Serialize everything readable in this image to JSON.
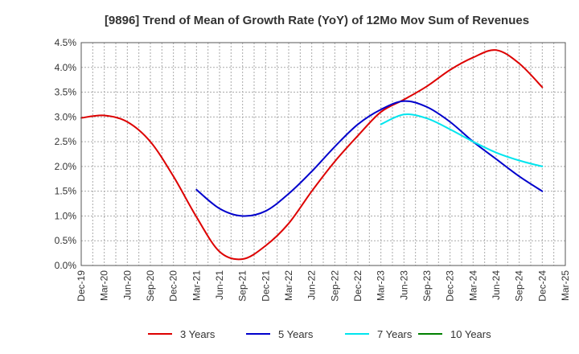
{
  "chart_data": {
    "type": "line",
    "title": "[9896]  Trend of Mean of Growth Rate (YoY) of 12Mo Mov Sum of Revenues",
    "xlabel": "",
    "ylabel": "",
    "ylim": [
      0,
      4.5
    ],
    "y_ticks": [
      "0.0%",
      "0.5%",
      "1.0%",
      "1.5%",
      "2.0%",
      "2.5%",
      "3.0%",
      "3.5%",
      "4.0%",
      "4.5%"
    ],
    "categories": [
      "Dec-19",
      "Mar-20",
      "Jun-20",
      "Sep-20",
      "Dec-20",
      "Mar-21",
      "Jun-21",
      "Sep-21",
      "Dec-21",
      "Mar-22",
      "Jun-22",
      "Sep-22",
      "Dec-22",
      "Mar-23",
      "Jun-23",
      "Sep-23",
      "Dec-23",
      "Mar-24",
      "Jun-24",
      "Sep-24",
      "Dec-24",
      "Mar-25"
    ],
    "grid": true,
    "legend_position": "bottom",
    "series": [
      {
        "name": "3 Years",
        "color": "#dd0000",
        "values": [
          2.98,
          3.03,
          2.9,
          2.5,
          1.8,
          0.98,
          0.28,
          0.13,
          0.4,
          0.85,
          1.5,
          2.1,
          2.62,
          3.1,
          3.35,
          3.62,
          3.95,
          4.2,
          4.35,
          4.08,
          3.6,
          null
        ]
      },
      {
        "name": "5 Years",
        "color": "#0000cc",
        "values": [
          null,
          null,
          null,
          null,
          null,
          1.53,
          1.15,
          1.0,
          1.1,
          1.45,
          1.9,
          2.4,
          2.85,
          3.15,
          3.32,
          3.2,
          2.9,
          2.5,
          2.15,
          1.8,
          1.5,
          null
        ]
      },
      {
        "name": "7 Years",
        "color": "#00e5ee",
        "values": [
          null,
          null,
          null,
          null,
          null,
          null,
          null,
          null,
          null,
          null,
          null,
          null,
          null,
          2.85,
          3.05,
          2.97,
          2.75,
          2.5,
          2.28,
          2.12,
          2.0,
          null
        ]
      },
      {
        "name": "10 Years",
        "color": "#008000",
        "values": [
          null,
          null,
          null,
          null,
          null,
          null,
          null,
          null,
          null,
          null,
          null,
          null,
          null,
          null,
          null,
          null,
          null,
          null,
          null,
          null,
          null,
          null
        ]
      }
    ]
  }
}
